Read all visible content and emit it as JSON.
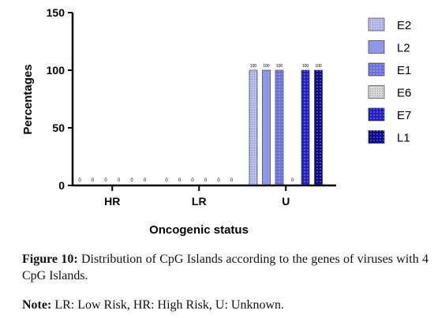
{
  "chart_data": {
    "type": "bar",
    "categories": [
      "HR",
      "LR",
      "U"
    ],
    "series": [
      {
        "name": "E2",
        "values": [
          0,
          0,
          100
        ],
        "fill": "#b8bff0",
        "pattern": "dots-fine"
      },
      {
        "name": "L2",
        "values": [
          0,
          0,
          100
        ],
        "fill": "#8f97e8",
        "pattern": "none"
      },
      {
        "name": "E1",
        "values": [
          0,
          0,
          100
        ],
        "fill": "#6b72dc",
        "pattern": "dots"
      },
      {
        "name": "E6",
        "values": [
          0,
          0,
          0
        ],
        "fill": "#d6d6d6",
        "pattern": "dots-fine"
      },
      {
        "name": "E7",
        "values": [
          0,
          0,
          100
        ],
        "fill": "#1f1fc4",
        "pattern": "dots"
      },
      {
        "name": "L1",
        "values": [
          0,
          0,
          100
        ],
        "fill": "#0a0a8c",
        "pattern": "dots"
      }
    ],
    "data_labels": [
      [
        "0",
        "0",
        "0",
        "0",
        "0",
        "0"
      ],
      [
        "0",
        "0",
        "0",
        "0",
        "0",
        "0"
      ],
      [
        "100",
        "100",
        "100",
        "0",
        "100",
        "100"
      ]
    ],
    "xlabel": "Oncogenic status",
    "ylabel": "Percentages",
    "ylim": [
      0,
      150
    ],
    "yticks": [
      "0",
      "50",
      "100",
      "150"
    ],
    "legend_position": "right",
    "grid": false
  },
  "caption": {
    "figure_label": "Figure 10:",
    "figure_text": " Distribution of CpG Islands according to the genes of viruses with 4 CpG Islands.",
    "note_label": "Note:",
    "note_text": " LR: Low Risk, HR: High Risk, U: Unknown."
  }
}
